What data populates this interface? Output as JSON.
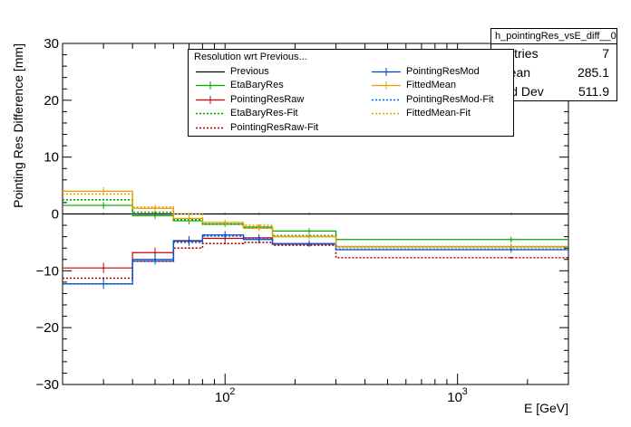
{
  "stats": {
    "title": "h_pointingRes_vsE_diff__0",
    "rows": [
      {
        "name": "Entries",
        "value": "7"
      },
      {
        "name": "Mean",
        "value": "285.1"
      },
      {
        "name": "Std Dev",
        "value": "511.9"
      }
    ]
  },
  "legend": {
    "header": "Resolution wrt Previous...",
    "entries": [
      "Previous",
      "EtaBaryRes",
      "PointingResRaw",
      "EtaBaryRes-Fit",
      "PointingResRaw-Fit",
      "PointingResMod",
      "FittedMean",
      "PointingResMod-Fit",
      "FittedMean-Fit"
    ]
  },
  "chart_data": {
    "type": "line",
    "title": "",
    "xlabel": "E [GeV]",
    "ylabel": "Pointing Res Difference [mm]",
    "xscale": "log",
    "xlim": [
      20,
      3000
    ],
    "ylim": [
      -30,
      30
    ],
    "yticks": [
      -30,
      -20,
      -10,
      0,
      10,
      20,
      30
    ],
    "xtick_labels": [
      {
        "value": 100,
        "label": "10",
        "exp": "2"
      },
      {
        "value": 1000,
        "label": "10",
        "exp": "3"
      }
    ],
    "bin_edges": [
      20,
      40,
      60,
      80,
      120,
      160,
      300,
      3000
    ],
    "bin_centers": [
      30,
      50,
      70,
      100,
      140,
      230,
      1700
    ],
    "series": [
      {
        "name": "Previous",
        "color": "#000000",
        "dashed": false,
        "values": [
          0,
          0,
          0,
          0,
          0,
          0,
          0
        ],
        "errors": [
          0,
          0,
          0,
          0,
          0,
          0,
          0
        ]
      },
      {
        "name": "EtaBaryRes",
        "color": "#00aa00",
        "dashed": false,
        "values": [
          1.5,
          -0.3,
          -1.2,
          -1.8,
          -2.3,
          -3.0,
          -4.5
        ],
        "errors": [
          0.6,
          0.6,
          0.6,
          0.5,
          0.5,
          0.5,
          0.5
        ]
      },
      {
        "name": "PointingResRaw",
        "color": "#cc0000",
        "dashed": false,
        "values": [
          -9.5,
          -6.8,
          -4.8,
          -4.3,
          -4.2,
          -5.3,
          -5.8
        ],
        "errors": [
          0.9,
          0.9,
          0.8,
          0.7,
          0.6,
          0.5,
          0.5
        ]
      },
      {
        "name": "EtaBaryRes-Fit",
        "color": "#00aa00",
        "dashed": true,
        "values": [
          2.5,
          0.3,
          -1.0,
          -1.8,
          -2.5,
          -3.8,
          -5.8
        ],
        "errors": [
          0,
          0,
          0,
          0,
          0,
          0,
          0
        ]
      },
      {
        "name": "PointingResRaw-Fit",
        "color": "#aa0000",
        "dashed": true,
        "values": [
          -11.3,
          -8.3,
          -6.0,
          -5.2,
          -5.0,
          -5.5,
          -7.7
        ],
        "errors": [
          0,
          0,
          0,
          0,
          0,
          0,
          0
        ]
      },
      {
        "name": "PointingResMod",
        "color": "#0044cc",
        "dashed": false,
        "values": [
          -12.3,
          -8.0,
          -4.7,
          -3.7,
          -4.5,
          -5.2,
          -6.3
        ],
        "errors": [
          0.9,
          0.9,
          0.8,
          0.7,
          0.6,
          0.5,
          0.5
        ]
      },
      {
        "name": "FittedMean",
        "color": "#e8a000",
        "dashed": false,
        "values": [
          4.0,
          1.0,
          -0.8,
          -1.5,
          -2.5,
          -4.0,
          -5.8
        ],
        "errors": [
          0.7,
          0.6,
          0.6,
          0.5,
          0.5,
          0.5,
          0.5
        ]
      },
      {
        "name": "PointingResMod-Fit",
        "color": "#0066dd",
        "dashed": true,
        "values": [
          -12.3,
          -8.3,
          -5.0,
          -3.9,
          -4.3,
          -5.3,
          -6.2
        ],
        "errors": [
          0,
          0,
          0,
          0,
          0,
          0,
          0
        ]
      },
      {
        "name": "FittedMean-Fit",
        "color": "#e8a000",
        "dashed": true,
        "values": [
          3.5,
          1.2,
          0.0,
          -1.5,
          -2.0,
          -4.0,
          -5.7
        ],
        "errors": [
          0,
          0,
          0,
          0,
          0,
          0,
          0
        ]
      }
    ]
  }
}
